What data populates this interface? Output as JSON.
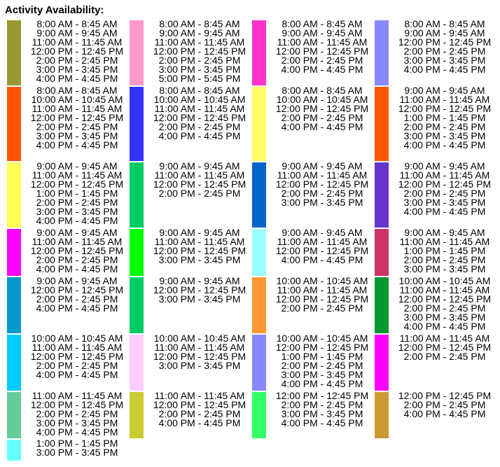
{
  "title": "Activity Availability:",
  "rows": [
    [
      {
        "color": "#999933",
        "times": [
          "8:00 AM - 8:45 AM",
          "9:00 AM - 9:45 AM",
          "11:00 AM - 11:45 AM",
          "12:00 PM - 12:45 PM",
          "2:00 PM - 2:45 PM",
          "3:00 PM - 3:45 PM",
          "4:00 PM - 4:45 PM"
        ]
      },
      {
        "color": "#FF99CC",
        "times": [
          "8:00 AM - 8:45 AM",
          "9:00 AM - 9:45 AM",
          "11:00 AM - 11:45 AM",
          "12:00 PM - 12:45 PM",
          "2:00 PM - 2:45 PM",
          "3:00 PM - 3:45 PM",
          "5:00 PM - 5:45 PM"
        ]
      },
      {
        "color": "#FF33CC",
        "times": [
          "8:00 AM - 8:45 AM",
          "9:00 AM - 9:45 AM",
          "11:00 AM - 11:45 AM",
          "12:00 PM - 12:45 PM",
          "2:00 PM - 2:45 PM",
          "4:00 PM - 4:45 PM"
        ]
      },
      {
        "color": "#8888FF",
        "times": [
          "8:00 AM - 8:45 AM",
          "9:00 AM - 9:45 AM",
          "12:00 PM - 12:45 PM",
          "2:00 PM - 2:45 PM",
          "3:00 PM - 3:45 PM",
          "4:00 PM - 4:45 PM"
        ]
      }
    ],
    [
      {
        "color": "#FF5500",
        "times": [
          "8:00 AM - 8:45 AM",
          "10:00 AM - 10:45 AM",
          "11:00 AM - 11:45 AM",
          "12:00 PM - 12:45 PM",
          "2:00 PM - 2:45 PM",
          "3:00 PM - 3:45 PM",
          "4:00 PM - 4:45 PM"
        ]
      },
      {
        "color": "#3333FF",
        "times": [
          "8:00 AM - 8:45 AM",
          "10:00 AM - 10:45 AM",
          "11:00 AM - 11:45 AM",
          "12:00 PM - 12:45 PM",
          "2:00 PM - 2:45 PM",
          "4:00 PM - 4:45 PM"
        ]
      },
      {
        "color": "#FFFF66",
        "times": [
          "8:00 AM - 8:45 AM",
          "10:00 AM - 10:45 AM",
          "12:00 PM - 12:45 PM",
          "2:00 PM - 2:45 PM",
          "4:00 PM - 4:45 PM"
        ]
      },
      {
        "color": "#FF5500",
        "times": [
          "9:00 AM - 9:45 AM",
          "11:00 AM - 11:45 AM",
          "12:00 PM - 12:45 PM",
          "1:00 PM - 1:45 PM",
          "2:00 PM - 2:45 PM",
          "3:00 PM - 3:45 PM",
          "4:00 PM - 4:45 PM"
        ]
      }
    ],
    [
      {
        "color": "#FFFF55",
        "times": [
          "9:00 AM - 9:45 AM",
          "11:00 AM - 11:45 AM",
          "12:00 PM - 12:45 PM",
          "1:00 PM - 1:45 PM",
          "2:00 PM - 2:45 PM",
          "3:00 PM - 3:45 PM",
          "4:00 PM - 4:45 PM"
        ]
      },
      {
        "color": "#00CC66",
        "times": [
          "9:00 AM - 9:45 AM",
          "11:00 AM - 11:45 AM",
          "12:00 PM - 12:45 PM",
          "2:00 PM - 2:45 PM"
        ]
      },
      {
        "color": "#0066CC",
        "times": [
          "9:00 AM - 9:45 AM",
          "11:00 AM - 11:45 AM",
          "12:00 PM - 12:45 PM",
          "2:00 PM - 2:45 PM",
          "3:00 PM - 3:45 PM"
        ]
      },
      {
        "color": "#6633CC",
        "times": [
          "9:00 AM - 9:45 AM",
          "11:00 AM - 11:45 AM",
          "12:00 PM - 12:45 PM",
          "2:00 PM - 2:45 PM",
          "3:00 PM - 3:45 PM",
          "4:00 PM - 4:45 PM"
        ]
      }
    ],
    [
      {
        "color": "#FF00FF",
        "times": [
          "9:00 AM - 9:45 AM",
          "11:00 AM - 11:45 AM",
          "12:00 PM - 12:45 PM",
          "2:00 PM - 2:45 PM",
          "4:00 PM - 4:45 PM"
        ]
      },
      {
        "color": "#00FF00",
        "times": [
          "9:00 AM - 9:45 AM",
          "11:00 AM - 11:45 AM",
          "12:00 PM - 12:45 PM",
          "3:00 PM - 3:45 PM"
        ]
      },
      {
        "color": "#99FFFF",
        "times": [
          "9:00 AM - 9:45 AM",
          "11:00 AM - 11:45 AM",
          "12:00 PM - 12:45 PM",
          "4:00 PM - 4:45 PM"
        ]
      },
      {
        "color": "#CC3366",
        "times": [
          "9:00 AM - 9:45 AM",
          "11:00 AM - 11:45 AM",
          "1:00 PM - 1:45 PM",
          "2:00 PM - 2:45 PM",
          "3:00 PM - 3:45 PM"
        ]
      }
    ],
    [
      {
        "color": "#0099CC",
        "times": [
          "9:00 AM - 9:45 AM",
          "12:00 PM - 12:45 PM",
          "2:00 PM - 2:45 PM",
          "4:00 PM - 4:45 PM"
        ]
      },
      {
        "color": "#00CC66",
        "times": [
          "9:00 AM - 9:45 AM",
          "12:00 PM - 12:45 PM",
          "3:00 PM - 3:45 PM"
        ]
      },
      {
        "color": "#FF9933",
        "times": [
          "10:00 AM - 10:45 AM",
          "11:00 AM - 11:45 AM",
          "12:00 PM - 12:45 PM",
          "2:00 PM - 2:45 PM"
        ]
      },
      {
        "color": "#009933",
        "times": [
          "10:00 AM - 10:45 AM",
          "11:00 AM - 11:45 AM",
          "12:00 PM - 12:45 PM",
          "2:00 PM - 2:45 PM",
          "3:00 PM - 3:45 PM",
          "4:00 PM - 4:45 PM"
        ]
      }
    ],
    [
      {
        "color": "#00CCFF",
        "times": [
          "10:00 AM - 10:45 AM",
          "11:00 AM - 11:45 AM",
          "12:00 PM - 12:45 PM",
          "2:00 PM - 2:45 PM",
          "4:00 PM - 4:45 PM"
        ]
      },
      {
        "color": "#FFCCFF",
        "times": [
          "10:00 AM - 10:45 AM",
          "11:00 AM - 11:45 AM",
          "12:00 PM - 12:45 PM",
          "3:00 PM - 3:45 PM"
        ]
      },
      {
        "color": "#8888FF",
        "times": [
          "10:00 AM - 10:45 AM",
          "12:00 PM - 12:45 PM",
          "1:00 PM - 1:45 PM",
          "2:00 PM - 2:45 PM",
          "3:00 PM - 3:45 PM",
          "4:00 PM - 4:45 PM"
        ]
      },
      {
        "color": "#FF00FF",
        "times": [
          "11:00 AM - 11:45 AM",
          "12:00 PM - 12:45 PM",
          "2:00 PM - 2:45 PM"
        ]
      }
    ],
    [
      {
        "color": "#66CC99",
        "times": [
          "11:00 AM - 11:45 AM",
          "12:00 PM - 12:45 PM",
          "2:00 PM - 2:45 PM",
          "3:00 PM - 3:45 PM",
          "4:00 PM - 4:45 PM"
        ]
      },
      {
        "color": "#CCCC33",
        "times": [
          "11:00 AM - 11:45 AM",
          "12:00 PM - 12:45 PM",
          "2:00 PM - 2:45 PM",
          "4:00 PM - 4:45 PM"
        ]
      },
      {
        "color": "#33FF66",
        "times": [
          "12:00 PM - 12:45 PM",
          "2:00 PM - 2:45 PM",
          "3:00 PM - 3:45 PM",
          "4:00 PM - 4:45 PM"
        ]
      },
      {
        "color": "#CC9933",
        "times": [
          "12:00 PM - 12:45 PM",
          "2:00 PM - 2:45 PM",
          "4:00 PM - 4:45 PM"
        ]
      }
    ],
    [
      {
        "color": "#66FFFF",
        "times": [
          "1:00 PM - 1:45 PM",
          "3:00 PM - 3:45 PM"
        ]
      }
    ]
  ]
}
